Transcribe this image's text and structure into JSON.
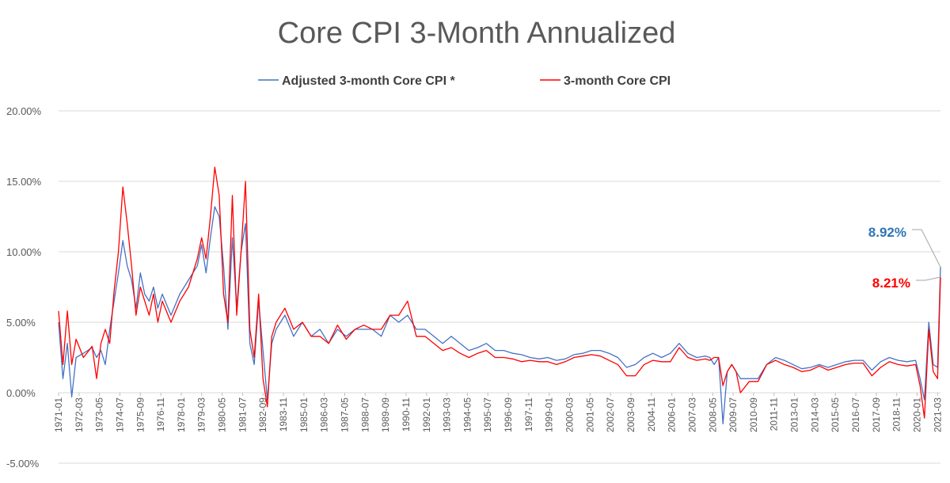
{
  "chart_data": {
    "type": "line",
    "title": "Core CPI 3-Month Annualized",
    "xlabel": "",
    "ylabel": "",
    "ylim": [
      -5,
      20
    ],
    "y_ticks": [
      "20.00%",
      "15.00%",
      "10.00%",
      "5.00%",
      "0.00%",
      "-5.00%"
    ],
    "y_tick_values": [
      20,
      15,
      10,
      5,
      0,
      -5
    ],
    "x_start": "1971-01",
    "x_end": "2021-05",
    "x_ticks": [
      "1971-01",
      "1972-03",
      "1973-05",
      "1974-07",
      "1975-09",
      "1976-11",
      "1978-01",
      "1979-03",
      "1980-05",
      "1981-07",
      "1982-09",
      "1983-11",
      "1985-01",
      "1986-03",
      "1987-05",
      "1988-07",
      "1989-09",
      "1990-11",
      "1992-01",
      "1993-03",
      "1994-05",
      "1995-07",
      "1996-09",
      "1997-11",
      "1999-01",
      "2000-03",
      "2001-05",
      "2002-07",
      "2003-09",
      "2004-11",
      "2006-01",
      "2007-03",
      "2008-05",
      "2009-07",
      "2010-09",
      "2011-11",
      "2013-01",
      "2014-03",
      "2015-05",
      "2016-07",
      "2017-09",
      "2018-11",
      "2020-01",
      "2021-03"
    ],
    "grid": true,
    "legend": "top-center",
    "series": [
      {
        "name": "Adjusted 3-month Core CPI *",
        "color": "#4472c4",
        "points": [
          [
            "1971-01",
            5.0
          ],
          [
            "1971-04",
            1.0
          ],
          [
            "1971-07",
            3.5
          ],
          [
            "1971-10",
            -0.3
          ],
          [
            "1972-01",
            2.5
          ],
          [
            "1972-06",
            2.8
          ],
          [
            "1972-12",
            3.2
          ],
          [
            "1973-03",
            2.5
          ],
          [
            "1973-06",
            3.0
          ],
          [
            "1973-09",
            2.0
          ],
          [
            "1973-12",
            4.5
          ],
          [
            "1974-03",
            6.5
          ],
          [
            "1974-06",
            8.5
          ],
          [
            "1974-09",
            10.8
          ],
          [
            "1974-12",
            9.0
          ],
          [
            "1975-03",
            8.0
          ],
          [
            "1975-06",
            6.0
          ],
          [
            "1975-09",
            8.5
          ],
          [
            "1975-12",
            7.0
          ],
          [
            "1976-03",
            6.5
          ],
          [
            "1976-06",
            7.5
          ],
          [
            "1976-09",
            6.0
          ],
          [
            "1976-12",
            7.0
          ],
          [
            "1977-06",
            5.5
          ],
          [
            "1977-12",
            7.0
          ],
          [
            "1978-06",
            8.0
          ],
          [
            "1978-12",
            9.0
          ],
          [
            "1979-03",
            10.5
          ],
          [
            "1979-06",
            8.5
          ],
          [
            "1979-09",
            11.0
          ],
          [
            "1979-12",
            13.2
          ],
          [
            "1980-03",
            12.5
          ],
          [
            "1980-06",
            9.0
          ],
          [
            "1980-09",
            4.5
          ],
          [
            "1980-12",
            11.0
          ],
          [
            "1981-03",
            6.0
          ],
          [
            "1981-06",
            10.0
          ],
          [
            "1981-09",
            12.0
          ],
          [
            "1981-12",
            3.5
          ],
          [
            "1982-03",
            2.0
          ],
          [
            "1982-06",
            6.5
          ],
          [
            "1982-09",
            3.0
          ],
          [
            "1982-12",
            -0.5
          ],
          [
            "1983-03",
            3.5
          ],
          [
            "1983-06",
            4.5
          ],
          [
            "1983-12",
            5.5
          ],
          [
            "1984-06",
            4.0
          ],
          [
            "1984-12",
            5.0
          ],
          [
            "1985-06",
            4.0
          ],
          [
            "1985-12",
            4.5
          ],
          [
            "1986-06",
            3.5
          ],
          [
            "1986-12",
            4.5
          ],
          [
            "1987-06",
            4.0
          ],
          [
            "1987-12",
            4.5
          ],
          [
            "1988-06",
            4.5
          ],
          [
            "1988-12",
            4.5
          ],
          [
            "1989-06",
            4.0
          ],
          [
            "1989-12",
            5.5
          ],
          [
            "1990-06",
            5.0
          ],
          [
            "1990-12",
            5.5
          ],
          [
            "1991-06",
            4.5
          ],
          [
            "1991-12",
            4.5
          ],
          [
            "1992-06",
            4.0
          ],
          [
            "1992-12",
            3.5
          ],
          [
            "1993-06",
            4.0
          ],
          [
            "1993-12",
            3.5
          ],
          [
            "1994-06",
            3.0
          ],
          [
            "1994-12",
            3.2
          ],
          [
            "1995-06",
            3.5
          ],
          [
            "1995-12",
            3.0
          ],
          [
            "1996-06",
            3.0
          ],
          [
            "1996-12",
            2.8
          ],
          [
            "1997-06",
            2.7
          ],
          [
            "1997-12",
            2.5
          ],
          [
            "1998-06",
            2.4
          ],
          [
            "1998-12",
            2.5
          ],
          [
            "1999-06",
            2.3
          ],
          [
            "1999-12",
            2.4
          ],
          [
            "2000-06",
            2.7
          ],
          [
            "2000-12",
            2.8
          ],
          [
            "2001-06",
            3.0
          ],
          [
            "2001-12",
            3.0
          ],
          [
            "2002-06",
            2.8
          ],
          [
            "2002-12",
            2.5
          ],
          [
            "2003-06",
            1.8
          ],
          [
            "2003-12",
            2.0
          ],
          [
            "2004-06",
            2.5
          ],
          [
            "2004-12",
            2.8
          ],
          [
            "2005-06",
            2.5
          ],
          [
            "2005-12",
            2.8
          ],
          [
            "2006-06",
            3.5
          ],
          [
            "2006-12",
            2.8
          ],
          [
            "2007-06",
            2.5
          ],
          [
            "2007-12",
            2.6
          ],
          [
            "2008-03",
            2.5
          ],
          [
            "2008-06",
            2.0
          ],
          [
            "2008-09",
            2.5
          ],
          [
            "2008-12",
            -2.2
          ],
          [
            "2009-03",
            1.5
          ],
          [
            "2009-06",
            2.0
          ],
          [
            "2009-09",
            1.5
          ],
          [
            "2009-12",
            1.0
          ],
          [
            "2010-06",
            1.0
          ],
          [
            "2010-12",
            1.0
          ],
          [
            "2011-06",
            2.0
          ],
          [
            "2011-12",
            2.5
          ],
          [
            "2012-06",
            2.3
          ],
          [
            "2012-12",
            2.0
          ],
          [
            "2013-06",
            1.7
          ],
          [
            "2013-12",
            1.8
          ],
          [
            "2014-06",
            2.0
          ],
          [
            "2014-12",
            1.8
          ],
          [
            "2015-06",
            2.0
          ],
          [
            "2015-12",
            2.2
          ],
          [
            "2016-06",
            2.3
          ],
          [
            "2016-12",
            2.3
          ],
          [
            "2017-06",
            1.6
          ],
          [
            "2017-12",
            2.2
          ],
          [
            "2018-06",
            2.5
          ],
          [
            "2018-12",
            2.3
          ],
          [
            "2019-06",
            2.2
          ],
          [
            "2019-12",
            2.3
          ],
          [
            "2020-03",
            1.0
          ],
          [
            "2020-06",
            -0.5
          ],
          [
            "2020-09",
            5.0
          ],
          [
            "2020-12",
            2.0
          ],
          [
            "2021-03",
            1.8
          ],
          [
            "2021-05",
            8.92
          ]
        ]
      },
      {
        "name": "3-month Core CPI",
        "color": "#ff0000",
        "points": [
          [
            "1971-01",
            5.8
          ],
          [
            "1971-04",
            2.0
          ],
          [
            "1971-07",
            5.8
          ],
          [
            "1971-10",
            2.0
          ],
          [
            "1972-01",
            3.8
          ],
          [
            "1972-06",
            2.5
          ],
          [
            "1972-12",
            3.3
          ],
          [
            "1973-03",
            1.0
          ],
          [
            "1973-06",
            3.5
          ],
          [
            "1973-09",
            4.5
          ],
          [
            "1973-12",
            3.5
          ],
          [
            "1974-03",
            7.2
          ],
          [
            "1974-06",
            10.0
          ],
          [
            "1974-09",
            14.6
          ],
          [
            "1974-12",
            12.0
          ],
          [
            "1975-03",
            9.0
          ],
          [
            "1975-06",
            5.5
          ],
          [
            "1975-09",
            7.5
          ],
          [
            "1975-12",
            6.5
          ],
          [
            "1976-03",
            5.5
          ],
          [
            "1976-06",
            7.0
          ],
          [
            "1976-09",
            5.0
          ],
          [
            "1976-12",
            6.5
          ],
          [
            "1977-06",
            5.0
          ],
          [
            "1977-12",
            6.5
          ],
          [
            "1978-06",
            7.5
          ],
          [
            "1978-12",
            9.5
          ],
          [
            "1979-03",
            11.0
          ],
          [
            "1979-06",
            9.5
          ],
          [
            "1979-09",
            12.5
          ],
          [
            "1979-12",
            16.0
          ],
          [
            "1980-03",
            14.0
          ],
          [
            "1980-06",
            7.0
          ],
          [
            "1980-09",
            5.0
          ],
          [
            "1980-12",
            14.0
          ],
          [
            "1981-03",
            5.5
          ],
          [
            "1981-06",
            10.0
          ],
          [
            "1981-09",
            15.0
          ],
          [
            "1981-12",
            4.5
          ],
          [
            "1982-03",
            2.5
          ],
          [
            "1982-06",
            7.0
          ],
          [
            "1982-09",
            1.0
          ],
          [
            "1982-12",
            -1.0
          ],
          [
            "1983-03",
            4.0
          ],
          [
            "1983-06",
            5.0
          ],
          [
            "1983-12",
            6.0
          ],
          [
            "1984-06",
            4.5
          ],
          [
            "1984-12",
            5.0
          ],
          [
            "1985-06",
            4.0
          ],
          [
            "1985-12",
            4.0
          ],
          [
            "1986-06",
            3.5
          ],
          [
            "1986-12",
            4.8
          ],
          [
            "1987-06",
            3.8
          ],
          [
            "1987-12",
            4.5
          ],
          [
            "1988-06",
            4.8
          ],
          [
            "1988-12",
            4.5
          ],
          [
            "1989-06",
            4.5
          ],
          [
            "1989-12",
            5.5
          ],
          [
            "1990-06",
            5.5
          ],
          [
            "1990-12",
            6.5
          ],
          [
            "1991-06",
            4.0
          ],
          [
            "1991-12",
            4.0
          ],
          [
            "1992-06",
            3.5
          ],
          [
            "1992-12",
            3.0
          ],
          [
            "1993-06",
            3.2
          ],
          [
            "1993-12",
            2.8
          ],
          [
            "1994-06",
            2.5
          ],
          [
            "1994-12",
            2.8
          ],
          [
            "1995-06",
            3.0
          ],
          [
            "1995-12",
            2.5
          ],
          [
            "1996-06",
            2.5
          ],
          [
            "1996-12",
            2.4
          ],
          [
            "1997-06",
            2.2
          ],
          [
            "1997-12",
            2.3
          ],
          [
            "1998-06",
            2.2
          ],
          [
            "1998-12",
            2.2
          ],
          [
            "1999-06",
            2.0
          ],
          [
            "1999-12",
            2.2
          ],
          [
            "2000-06",
            2.5
          ],
          [
            "2000-12",
            2.6
          ],
          [
            "2001-06",
            2.7
          ],
          [
            "2001-12",
            2.6
          ],
          [
            "2002-06",
            2.3
          ],
          [
            "2002-12",
            2.0
          ],
          [
            "2003-06",
            1.2
          ],
          [
            "2003-12",
            1.2
          ],
          [
            "2004-06",
            2.0
          ],
          [
            "2004-12",
            2.3
          ],
          [
            "2005-06",
            2.2
          ],
          [
            "2005-12",
            2.2
          ],
          [
            "2006-06",
            3.2
          ],
          [
            "2006-12",
            2.5
          ],
          [
            "2007-06",
            2.3
          ],
          [
            "2007-12",
            2.4
          ],
          [
            "2008-03",
            2.3
          ],
          [
            "2008-06",
            2.5
          ],
          [
            "2008-09",
            2.5
          ],
          [
            "2008-12",
            0.5
          ],
          [
            "2009-03",
            1.5
          ],
          [
            "2009-06",
            2.0
          ],
          [
            "2009-09",
            1.5
          ],
          [
            "2009-12",
            0.0
          ],
          [
            "2010-06",
            0.8
          ],
          [
            "2010-12",
            0.8
          ],
          [
            "2011-06",
            2.0
          ],
          [
            "2011-12",
            2.3
          ],
          [
            "2012-06",
            2.0
          ],
          [
            "2012-12",
            1.8
          ],
          [
            "2013-06",
            1.5
          ],
          [
            "2013-12",
            1.6
          ],
          [
            "2014-06",
            1.9
          ],
          [
            "2014-12",
            1.6
          ],
          [
            "2015-06",
            1.8
          ],
          [
            "2015-12",
            2.0
          ],
          [
            "2016-06",
            2.1
          ],
          [
            "2016-12",
            2.1
          ],
          [
            "2017-06",
            1.2
          ],
          [
            "2017-12",
            1.8
          ],
          [
            "2018-06",
            2.2
          ],
          [
            "2018-12",
            2.0
          ],
          [
            "2019-06",
            1.9
          ],
          [
            "2019-12",
            2.0
          ],
          [
            "2020-03",
            0.5
          ],
          [
            "2020-06",
            -1.8
          ],
          [
            "2020-09",
            4.5
          ],
          [
            "2020-12",
            1.5
          ],
          [
            "2021-03",
            1.0
          ],
          [
            "2021-05",
            8.21
          ]
        ]
      }
    ],
    "annotations": [
      {
        "text": "8.92%",
        "color": "#2e75b6",
        "series": 0
      },
      {
        "text": "8.21%",
        "color": "#ff0000",
        "series": 1
      }
    ]
  }
}
